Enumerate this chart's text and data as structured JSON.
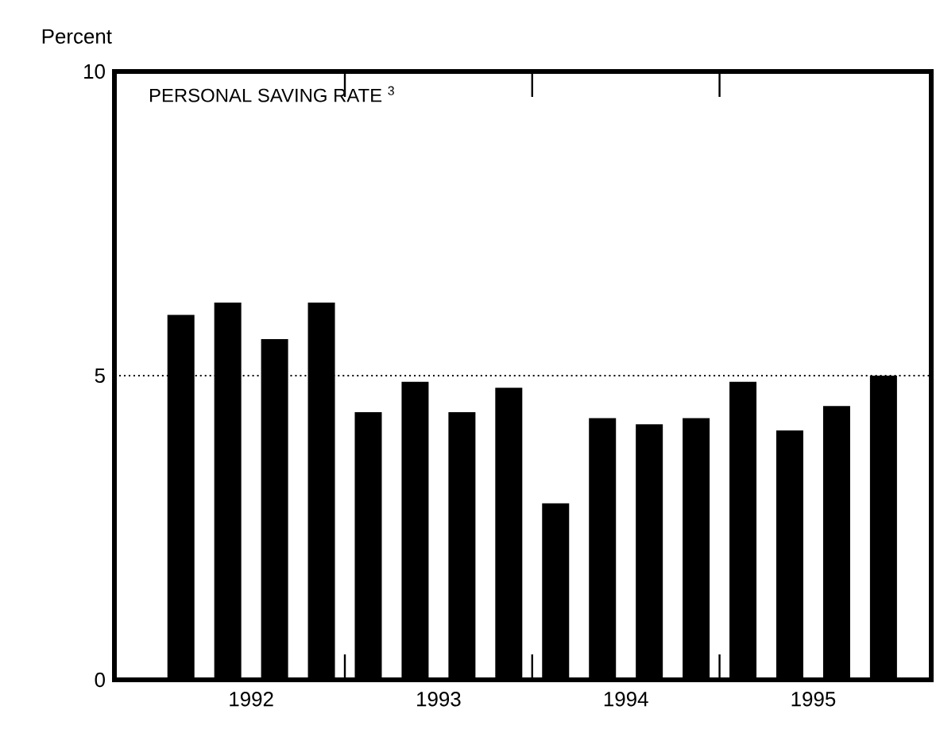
{
  "chart_data": {
    "type": "bar",
    "title": "PERSONAL SAVING RATE $^{3}$",
    "ylabel": "Percent",
    "x": [
      1992.125,
      1992.375,
      1992.625,
      1992.875,
      1993.125,
      1993.375,
      1993.625,
      1993.875,
      1994.125,
      1994.375,
      1994.625,
      1994.875,
      1995.125,
      1995.375,
      1995.625,
      1995.875
    ],
    "values": [
      6.0,
      6.2,
      5.6,
      6.2,
      4.4,
      4.9,
      4.4,
      4.8,
      2.9,
      4.3,
      4.2,
      4.3,
      4.9,
      4.1,
      4.5,
      5.0
    ],
    "color": "#000000",
    "xlim": [
      1991.77,
      1996.13
    ],
    "xticks": [
      {
        "value": 1992.5,
        "label": "1992"
      },
      {
        "value": 1993,
        "label": null
      },
      {
        "value": 1993.5,
        "label": "1993"
      },
      {
        "value": 1994,
        "label": null
      },
      {
        "value": 1994.5,
        "label": "1994"
      },
      {
        "value": 1995,
        "label": null
      },
      {
        "value": 1995.5,
        "label": "1995"
      }
    ],
    "ylim": [
      0,
      10
    ],
    "yticks": [
      0,
      5,
      10
    ],
    "ref_lines": [
      {
        "axis": "y",
        "value": 5,
        "line_style": "dotted"
      }
    ]
  }
}
